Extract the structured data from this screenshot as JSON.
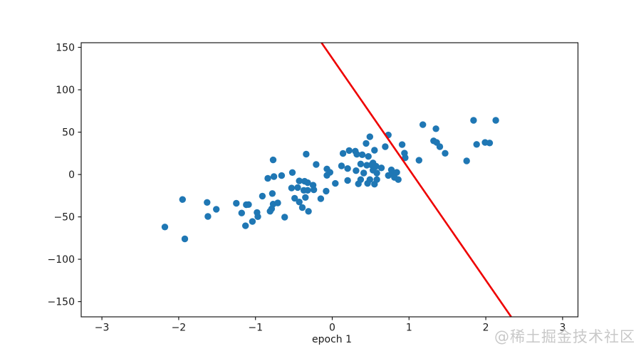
{
  "watermark": {
    "text": "@稀土掘金技术社区",
    "color": "#c8c8c8"
  },
  "chart_data": {
    "type": "scatter",
    "title": "",
    "xlabel": "epoch 1",
    "ylabel": "",
    "grid": false,
    "legend": "none",
    "xlim": [
      -3.27,
      3.2
    ],
    "ylim": [
      -168,
      155.5
    ],
    "x_ticks": {
      "values": [
        -3,
        -2,
        -1,
        0,
        1,
        2,
        3
      ],
      "labels": [
        "−3",
        "−2",
        "−1",
        "0",
        "1",
        "2",
        "3"
      ]
    },
    "y_ticks": {
      "values": [
        -150,
        -100,
        -50,
        0,
        50,
        100,
        150
      ],
      "labels": [
        "−150",
        "−100",
        "−50",
        "0",
        "50",
        "100",
        "150"
      ]
    },
    "colors": {
      "axis": "#1a1a1a",
      "scatter": "#1f77b4",
      "line": "#ee0000",
      "background": "#ffffff"
    },
    "series": [
      {
        "name": "data-points",
        "type": "scatter",
        "color": "#1f77b4",
        "marker_radius": 4.7,
        "points": [
          [
            -2.18,
            -62
          ],
          [
            -1.92,
            -76
          ],
          [
            -1.95,
            -29.5
          ],
          [
            -1.63,
            -33
          ],
          [
            -1.51,
            -41
          ],
          [
            -1.62,
            -49.5
          ],
          [
            -1.25,
            -34
          ],
          [
            -1.09,
            -35.5
          ],
          [
            -1.18,
            -45.5
          ],
          [
            -1.13,
            -60.5
          ],
          [
            -1.04,
            -55.5
          ],
          [
            -0.98,
            -44.8
          ],
          [
            -0.97,
            -49.8
          ],
          [
            -0.81,
            -43.4
          ],
          [
            -0.77,
            -35
          ],
          [
            -0.71,
            -33.6
          ],
          [
            -0.62,
            -50.4
          ],
          [
            -1.12,
            -35.7
          ],
          [
            -0.91,
            -25.5
          ],
          [
            -0.78,
            -22.5
          ],
          [
            -0.79,
            -40.5
          ],
          [
            -0.53,
            -16
          ],
          [
            -0.45,
            -15.4
          ],
          [
            -0.43,
            -7.6
          ],
          [
            -0.36,
            -8
          ],
          [
            -0.32,
            -9.7
          ],
          [
            -0.25,
            -12.6
          ],
          [
            -0.24,
            -18.1
          ],
          [
            -0.37,
            -18.7
          ],
          [
            -0.32,
            -18.7
          ],
          [
            -0.49,
            -28
          ],
          [
            -0.43,
            -32.5
          ],
          [
            -0.39,
            -39
          ],
          [
            -0.31,
            -43.5
          ],
          [
            -0.35,
            -27.1
          ],
          [
            -0.15,
            -28.6
          ],
          [
            -0.08,
            -19.6
          ],
          [
            -0.84,
            -4.6
          ],
          [
            -0.76,
            -2.5
          ],
          [
            -0.66,
            -1.3
          ],
          [
            -0.52,
            2.3
          ],
          [
            -0.77,
            17.2
          ],
          [
            -0.34,
            24
          ],
          [
            -0.21,
            11.8
          ],
          [
            -0.07,
            6.5
          ],
          [
            -0.03,
            2.5
          ],
          [
            -0.07,
            -1
          ],
          [
            0.04,
            -10.5
          ],
          [
            0.2,
            -7
          ],
          [
            0.34,
            -11
          ],
          [
            0.37,
            -6
          ],
          [
            0.46,
            -10.5
          ],
          [
            0.49,
            -6
          ],
          [
            0.55,
            -11.5
          ],
          [
            0.58,
            -6
          ],
          [
            0.12,
            10.1
          ],
          [
            0.2,
            7
          ],
          [
            0.31,
            4.5
          ],
          [
            0.41,
            1.7
          ],
          [
            0.37,
            12.4
          ],
          [
            0.45,
            10.9
          ],
          [
            0.53,
            5
          ],
          [
            0.58,
            1.7
          ],
          [
            0.53,
            13.7
          ],
          [
            0.51,
            11.2
          ],
          [
            0.57,
            9.8
          ],
          [
            0.64,
            7.8
          ],
          [
            0.14,
            24.8
          ],
          [
            0.22,
            28.3
          ],
          [
            0.3,
            27.5
          ],
          [
            0.32,
            23.8
          ],
          [
            0.39,
            23.3
          ],
          [
            0.47,
            21.3
          ],
          [
            0.55,
            28.6
          ],
          [
            0.44,
            36.7
          ],
          [
            0.49,
            44.5
          ],
          [
            0.73,
            46.6
          ],
          [
            0.69,
            32.8
          ],
          [
            0.73,
            -1.1
          ],
          [
            0.77,
            5.4
          ],
          [
            0.78,
            0.8
          ],
          [
            0.84,
            2.5
          ],
          [
            0.81,
            -3.5
          ],
          [
            0.86,
            -6
          ],
          [
            0.91,
            35.3
          ],
          [
            0.94,
            25.2
          ],
          [
            0.95,
            19.8
          ],
          [
            1.13,
            16.8
          ],
          [
            1.18,
            58.8
          ],
          [
            1.35,
            54
          ],
          [
            1.32,
            39.7
          ],
          [
            1.36,
            37.8
          ],
          [
            1.4,
            32.8
          ],
          [
            1.47,
            25
          ],
          [
            1.75,
            16
          ],
          [
            1.84,
            63.9
          ],
          [
            2.13,
            63.9
          ],
          [
            1.88,
            35.5
          ],
          [
            1.99,
            37.8
          ],
          [
            2.05,
            37.2
          ]
        ]
      },
      {
        "name": "fit-line",
        "type": "line",
        "color": "#ee0000",
        "width": 2.6,
        "points": [
          [
            -0.14,
            155.5
          ],
          [
            2.33,
            -168
          ]
        ]
      }
    ]
  }
}
